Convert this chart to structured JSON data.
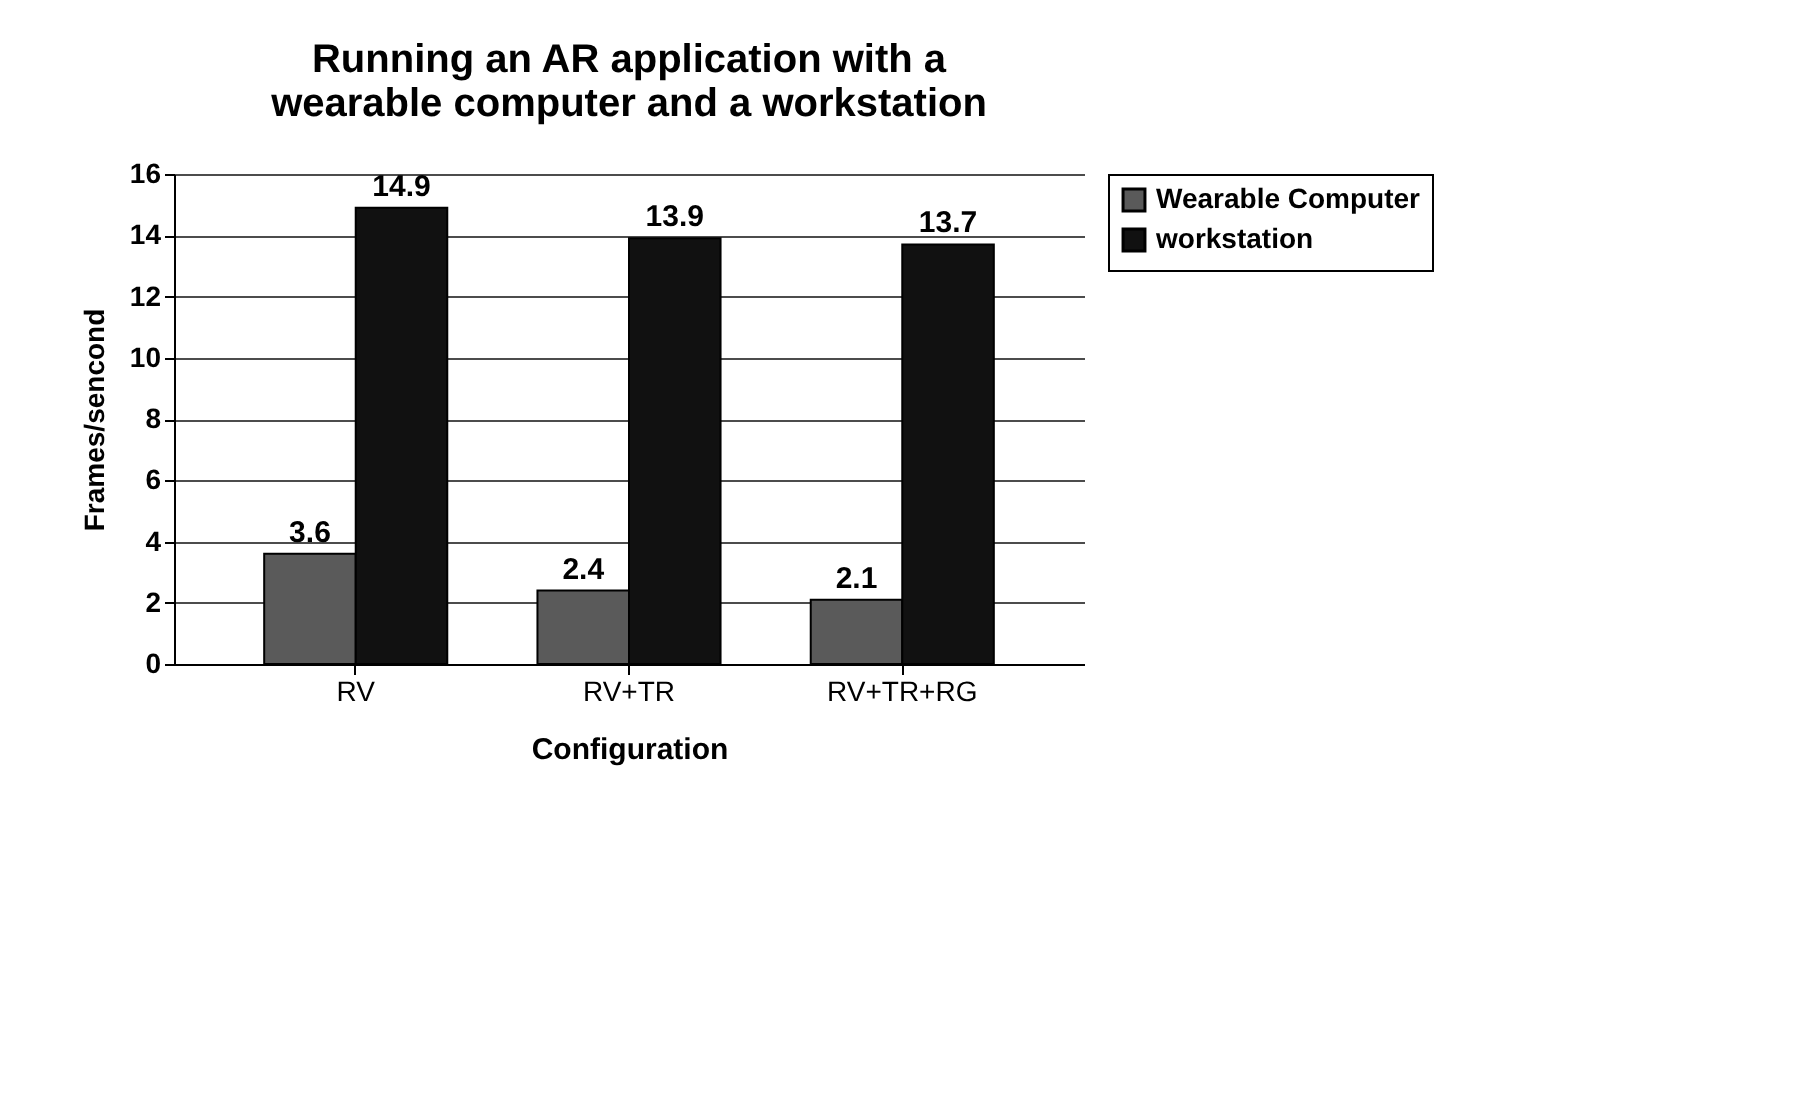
{
  "chart_data": {
    "type": "bar",
    "title": "Running an AR application with a wearable computer and a workstation",
    "xlabel": "Configuration",
    "ylabel": "Frames/sencond",
    "categories": [
      "RV",
      "RV+TR",
      "RV+TR+RG"
    ],
    "series": [
      {
        "name": "Wearable Computer",
        "color": "#5a5a5a",
        "values": [
          3.6,
          2.4,
          2.1
        ]
      },
      {
        "name": "workstation",
        "color": "#111111",
        "values": [
          14.9,
          13.9,
          13.7
        ]
      }
    ],
    "ylim": [
      0,
      16
    ],
    "yticks": [
      0,
      2,
      4,
      6,
      8,
      10,
      12,
      14,
      16
    ],
    "grid": "y",
    "legend": "right",
    "data_labels": true
  }
}
